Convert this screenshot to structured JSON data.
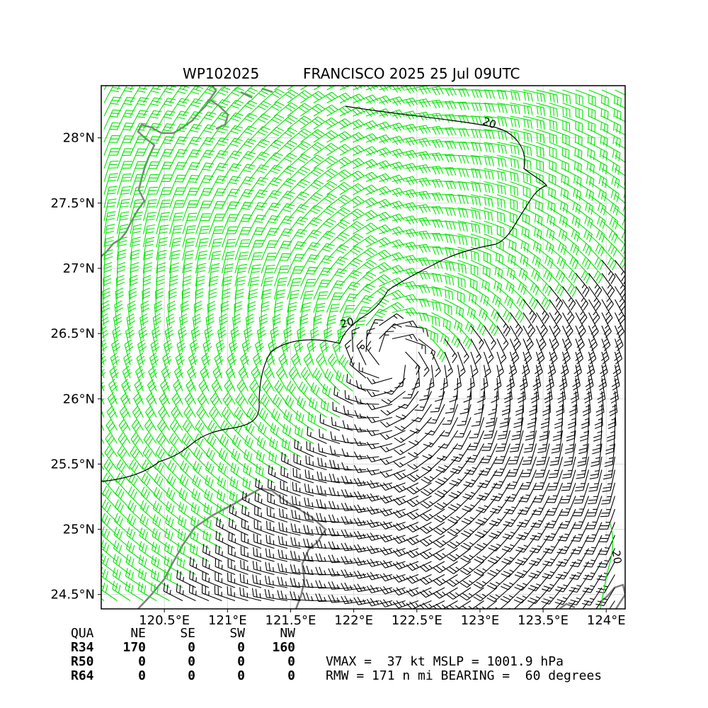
{
  "title": {
    "storm_id": "WP102025",
    "storm_info": "FRANCISCO 2025 25 Jul 09UTC"
  },
  "map": {
    "lon_range": [
      120.0,
      124.15
    ],
    "lat_range": [
      24.39,
      28.4
    ],
    "lon_ticks": [
      {
        "value": 120.5,
        "label": "120.5°E"
      },
      {
        "value": 121.0,
        "label": "121°E"
      },
      {
        "value": 121.5,
        "label": "121.5°E"
      },
      {
        "value": 122.0,
        "label": "122°E"
      },
      {
        "value": 122.5,
        "label": "122.5°E"
      },
      {
        "value": 123.0,
        "label": "123°E"
      },
      {
        "value": 123.5,
        "label": "123.5°E"
      },
      {
        "value": 124.0,
        "label": "124°E"
      }
    ],
    "lat_ticks": [
      {
        "value": 28.0,
        "label": "28°N"
      },
      {
        "value": 27.5,
        "label": "27.5°N"
      },
      {
        "value": 27.0,
        "label": "27°N"
      },
      {
        "value": 26.5,
        "label": "26.5°N"
      },
      {
        "value": 26.0,
        "label": "26°N"
      },
      {
        "value": 25.5,
        "label": "25.5°N"
      },
      {
        "value": 25.0,
        "label": "25°N"
      },
      {
        "value": 24.5,
        "label": "24.5°N"
      }
    ],
    "center": {
      "lon": 122.3,
      "lat": 26.3
    },
    "contour_label": "20",
    "colors": {
      "strong_wind": "#00e600",
      "weak_wind": "#000000",
      "coastline": "#808080",
      "grid": "#d9d9d9"
    }
  },
  "radii_table": {
    "header": [
      "QUA",
      "NE",
      "SE",
      "SW",
      "NW"
    ],
    "rows": [
      {
        "label": "R34",
        "values": [
          "170",
          "0",
          "0",
          "160"
        ]
      },
      {
        "label": "R50",
        "values": [
          "0",
          "0",
          "0",
          "0"
        ]
      },
      {
        "label": "R64",
        "values": [
          "0",
          "0",
          "0",
          "0"
        ]
      }
    ]
  },
  "stats": {
    "line1": "VMAX =  37 kt MSLP = 1001.9 hPa",
    "line2": "RMW = 171 n mi BEARING =  60 degrees"
  }
}
